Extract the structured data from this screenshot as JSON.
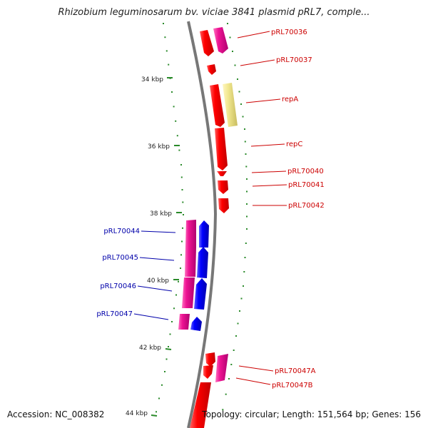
{
  "title": "Rhizobium leguminosarum bv. viciae 3841 plasmid pRL7, comple...",
  "footer": {
    "accession": "Accession: NC_008382",
    "stats": "Topology: circular; Length: 151,564 bp; Genes: 156"
  },
  "scale_labels": [
    "34 kbp",
    "36 kbp",
    "38 kbp",
    "40 kbp",
    "42 kbp",
    "44 kbp"
  ],
  "genes": [
    {
      "label": "pRL70036",
      "strand": "reverse",
      "color": "#ff0000"
    },
    {
      "label": "pRL70037",
      "strand": "reverse",
      "color": "#ff0000"
    },
    {
      "label": "repA",
      "strand": "reverse",
      "color": "#ff0000"
    },
    {
      "label": "repC",
      "strand": "reverse",
      "color": "#ff0000"
    },
    {
      "label": "pRL70040",
      "strand": "reverse",
      "color": "#ff0000"
    },
    {
      "label": "pRL70041",
      "strand": "reverse",
      "color": "#ff0000"
    },
    {
      "label": "pRL70042",
      "strand": "reverse",
      "color": "#ff0000"
    },
    {
      "label": "pRL70044",
      "strand": "forward",
      "color": "#0000ff"
    },
    {
      "label": "pRL70045",
      "strand": "forward",
      "color": "#0000ff"
    },
    {
      "label": "pRL70046",
      "strand": "forward",
      "color": "#0000ff"
    },
    {
      "label": "pRL70047",
      "strand": "forward",
      "color": "#0000ff"
    },
    {
      "label": "pRL70047A",
      "strand": "reverse",
      "color": "#ff0000"
    },
    {
      "label": "pRL70047B",
      "strand": "reverse",
      "color": "#ff0000"
    }
  ],
  "colors": {
    "forward_label": "#0000aa",
    "reverse_label": "#cc0000",
    "cds_forward": "#0000ff",
    "cds_reverse": "#ff0000",
    "gene_track": "#ee1493",
    "misc_feature": "#f0e68c",
    "backbone": "#777777",
    "scale_ticks": "#2a8a2a"
  }
}
